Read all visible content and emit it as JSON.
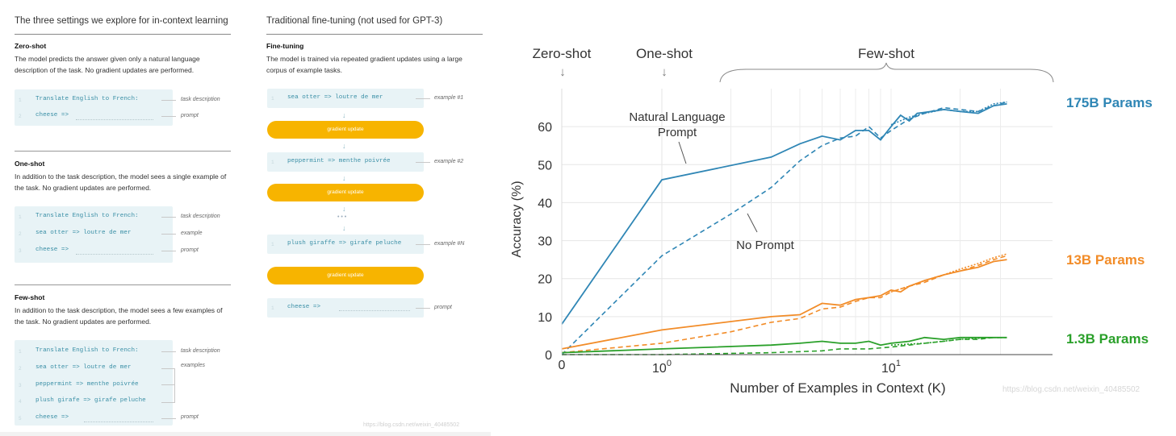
{
  "left": {
    "col1_title": "The three settings we explore for in-context learning",
    "col2_title": "Traditional fine-tuning (not used for GPT-3)",
    "zero": {
      "title": "Zero-shot",
      "desc": "The model predicts the answer given only a natural language description of the task. No gradient updates are performed.",
      "lines": [
        "Translate English to French:",
        "cheese =>"
      ],
      "annots": [
        "task description",
        "prompt"
      ]
    },
    "one": {
      "title": "One-shot",
      "desc": "In addition to the task description, the model sees a single example of the task. No gradient updates are performed.",
      "lines": [
        "Translate English to French:",
        "sea otter => loutre de mer",
        "cheese =>"
      ],
      "annots": [
        "task description",
        "example",
        "prompt"
      ]
    },
    "few": {
      "title": "Few-shot",
      "desc": "In addition to the task description, the model sees a few examples of the task. No gradient updates are performed.",
      "lines": [
        "Translate English to French:",
        "sea otter => loutre de mer",
        "peppermint => menthe poivrée",
        "plush girafe => girafe peluche",
        "cheese =>"
      ],
      "annots": [
        "task description",
        "examples",
        "prompt"
      ]
    },
    "ft": {
      "title": "Fine-tuning",
      "desc": "The model is trained via repeated gradient updates using a large corpus of example tasks.",
      "examples": [
        "sea otter => loutre de mer",
        "peppermint => menthe poivrée",
        "plush giraffe => girafe peluche",
        "cheese =>"
      ],
      "annots": [
        "example #1",
        "example #2",
        "example #N",
        "prompt"
      ],
      "update_label": "gradient update",
      "ellipsis": "• • •"
    },
    "line_numbers": [
      "1",
      "2",
      "3",
      "4",
      "5"
    ],
    "watermark": "https://blog.csdn.net/weixin_40485502"
  },
  "chart_data": {
    "type": "line",
    "xscale": "log",
    "xlabel": "Number of Examples in Context  (K)",
    "ylabel": "Accuracy (%)",
    "ylim": [
      0,
      70
    ],
    "yticks": [
      0,
      10,
      20,
      30,
      40,
      50,
      60
    ],
    "xtick_labels": [
      {
        "value": 0,
        "label": "0"
      },
      {
        "value": 1,
        "label": "10",
        "sup": "0"
      },
      {
        "value": 10,
        "label": "10",
        "sup": "1"
      }
    ],
    "grid": true,
    "series": [
      {
        "name": "175B Params",
        "color": "#2f86b5",
        "style": "solid",
        "points": [
          [
            0,
            8
          ],
          [
            1,
            46
          ],
          [
            3,
            52
          ],
          [
            4,
            55.5
          ],
          [
            5,
            57.5
          ],
          [
            6,
            56.5
          ],
          [
            7,
            59
          ],
          [
            8,
            59
          ],
          [
            9,
            56.5
          ],
          [
            10,
            60
          ],
          [
            11,
            63
          ],
          [
            12,
            61.5
          ],
          [
            13,
            63.5
          ],
          [
            15,
            64
          ],
          [
            17,
            64.5
          ],
          [
            20,
            64
          ],
          [
            24,
            63.5
          ],
          [
            28,
            65.5
          ],
          [
            32,
            66
          ]
        ]
      },
      {
        "name": "175B Params",
        "color": "#2f86b5",
        "style": "dashed",
        "points": [
          [
            0,
            0
          ],
          [
            1,
            26
          ],
          [
            2,
            37
          ],
          [
            3,
            44
          ],
          [
            4,
            51
          ],
          [
            5,
            55
          ],
          [
            6,
            57
          ],
          [
            7,
            57.5
          ],
          [
            8,
            60
          ],
          [
            9,
            57
          ],
          [
            10,
            59
          ],
          [
            12,
            62
          ],
          [
            14,
            63.5
          ],
          [
            17,
            65
          ],
          [
            20,
            64.5
          ],
          [
            24,
            64
          ],
          [
            28,
            65.5
          ],
          [
            32,
            66.5
          ]
        ]
      },
      {
        "name": "175B Params",
        "color": "#2f86b5",
        "style": "dotted",
        "points": [
          [
            10,
            60.5
          ],
          [
            12,
            62.5
          ],
          [
            14,
            63.5
          ],
          [
            17,
            64.5
          ],
          [
            20,
            64
          ],
          [
            24,
            64
          ],
          [
            28,
            66
          ],
          [
            32,
            66.5
          ]
        ]
      },
      {
        "name": "13B Params",
        "color": "#f28c28",
        "style": "solid",
        "points": [
          [
            0,
            1.5
          ],
          [
            1,
            6.5
          ],
          [
            3,
            10
          ],
          [
            4,
            10.5
          ],
          [
            5,
            13.5
          ],
          [
            6,
            13
          ],
          [
            7,
            14.5
          ],
          [
            8,
            15
          ],
          [
            9,
            15.5
          ],
          [
            10,
            17
          ],
          [
            11,
            16.5
          ],
          [
            12,
            18
          ],
          [
            14,
            19.5
          ],
          [
            17,
            21
          ],
          [
            20,
            22
          ],
          [
            24,
            23
          ],
          [
            28,
            24.5
          ],
          [
            32,
            25
          ]
        ]
      },
      {
        "name": "13B Params",
        "color": "#f28c28",
        "style": "dashed",
        "points": [
          [
            0,
            0.5
          ],
          [
            1,
            3
          ],
          [
            2,
            6
          ],
          [
            3,
            8.5
          ],
          [
            4,
            9.5
          ],
          [
            5,
            12
          ],
          [
            6,
            12.5
          ],
          [
            7,
            14
          ],
          [
            8,
            15
          ],
          [
            9,
            15
          ],
          [
            10,
            16.5
          ],
          [
            12,
            18
          ],
          [
            14,
            19
          ],
          [
            17,
            21
          ],
          [
            20,
            22
          ],
          [
            24,
            23.5
          ],
          [
            28,
            25
          ],
          [
            32,
            26
          ]
        ]
      },
      {
        "name": "13B Params",
        "color": "#f28c28",
        "style": "dotted",
        "points": [
          [
            10,
            16.5
          ],
          [
            12,
            18
          ],
          [
            14,
            19.5
          ],
          [
            17,
            21
          ],
          [
            20,
            22.5
          ],
          [
            24,
            24
          ],
          [
            28,
            25.5
          ],
          [
            32,
            26.5
          ]
        ]
      },
      {
        "name": "1.3B Params",
        "color": "#2aa02a",
        "style": "solid",
        "points": [
          [
            0,
            0.5
          ],
          [
            1,
            1.5
          ],
          [
            3,
            2.5
          ],
          [
            4,
            3
          ],
          [
            5,
            3.5
          ],
          [
            6,
            3
          ],
          [
            7,
            3
          ],
          [
            8,
            3.5
          ],
          [
            9,
            2.5
          ],
          [
            10,
            3
          ],
          [
            12,
            3.5
          ],
          [
            14,
            4.5
          ],
          [
            17,
            4
          ],
          [
            20,
            4.5
          ],
          [
            24,
            4.5
          ],
          [
            28,
            4.5
          ],
          [
            32,
            4.5
          ]
        ]
      },
      {
        "name": "1.3B Params",
        "color": "#2aa02a",
        "style": "dashed",
        "points": [
          [
            0,
            0
          ],
          [
            1,
            0
          ],
          [
            3,
            0.5
          ],
          [
            5,
            1
          ],
          [
            6,
            1.5
          ],
          [
            8,
            1.5
          ],
          [
            10,
            2
          ],
          [
            12,
            2.5
          ],
          [
            14,
            3
          ],
          [
            17,
            3.5
          ],
          [
            20,
            4
          ],
          [
            24,
            4
          ],
          [
            28,
            4.5
          ],
          [
            32,
            4.5
          ]
        ]
      },
      {
        "name": "1.3B Params",
        "color": "#2aa02a",
        "style": "dotted",
        "points": [
          [
            10,
            2.5
          ],
          [
            14,
            3
          ],
          [
            20,
            4
          ],
          [
            28,
            4.5
          ],
          [
            32,
            4.5
          ]
        ]
      }
    ],
    "series_labels": [
      {
        "text": "175B Params",
        "color": "#2f86b5"
      },
      {
        "text": "13B Params",
        "color": "#f28c28"
      },
      {
        "text": "1.3B Params",
        "color": "#2aa02a"
      }
    ],
    "top_labels": [
      "Zero-shot",
      "One-shot",
      "Few-shot"
    ],
    "annotations": [
      "Natural Language",
      "Prompt",
      "No Prompt"
    ],
    "watermark": "https://blog.csdn.net/weixin_40485502"
  }
}
